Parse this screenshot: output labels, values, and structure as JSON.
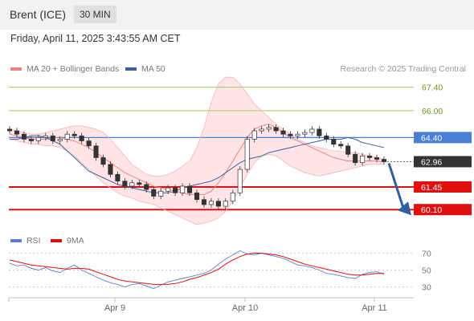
{
  "header": {
    "instrument": "Brent (ICE)",
    "timeframe": "30 MIN"
  },
  "datetime": "Friday, April 11, 2025 3:43:55 AM CET",
  "credit": "Research © 2025 Trading Central",
  "colors": {
    "bollinger": "#f08080",
    "ma50": "#3a5fa5",
    "resistance": "#8bc34a",
    "pivot": "#4a7fd6",
    "support": "#e01010",
    "last_price": "#333333",
    "arrow": "#2f5f9f",
    "candle_up": "#ffffff",
    "candle_down": "#333333",
    "rsi": "#5a7fd6",
    "rsi_ma": "#e01010"
  },
  "chart_data": [
    {
      "type": "line",
      "title": "",
      "legend": [
        {
          "name": "MA 20 + Bollinger Bands",
          "color": "#f08080"
        },
        {
          "name": "MA 50",
          "color": "#3a5fa5"
        }
      ],
      "x_ticks": [
        "Apr 9",
        "Apr 10",
        "Apr 11"
      ],
      "ylim": [
        59.2,
        68.2
      ],
      "levels": [
        {
          "label": "67.40",
          "value": 67.4,
          "kind": "resistance"
        },
        {
          "label": "66.00",
          "value": 66.0,
          "kind": "resistance"
        },
        {
          "label": "64.40",
          "value": 64.4,
          "kind": "pivot"
        },
        {
          "label": "62.96",
          "value": 62.96,
          "kind": "last"
        },
        {
          "label": "61.45",
          "value": 61.45,
          "kind": "support"
        },
        {
          "label": "60.10",
          "value": 60.1,
          "kind": "support"
        }
      ],
      "arrow": {
        "direction": "down",
        "from": 62.96,
        "to": 60.1
      },
      "series": [
        {
          "name": "MA 20",
          "values": [
            64.6,
            64.5,
            64.4,
            64.3,
            64.3,
            64.3,
            64.4,
            64.4,
            64.3,
            64.2,
            64.0,
            63.8,
            63.5,
            63.2,
            62.9,
            62.6,
            62.3,
            62.1,
            61.9,
            61.7,
            61.5,
            61.4,
            61.3,
            61.2,
            61.1,
            61.0,
            61.0,
            61.0,
            61.2,
            61.7,
            62.3,
            63.0,
            63.7,
            64.4,
            64.9,
            65.1,
            65.2,
            65.0,
            64.7,
            64.4,
            64.2,
            64.0,
            63.8,
            63.6,
            63.4,
            63.2,
            63.1,
            63.0,
            63.0,
            63.0,
            63.0,
            63.0,
            62.96
          ]
        },
        {
          "name": "MA 50",
          "values": [
            64.3,
            64.3,
            64.4,
            64.5,
            64.5,
            64.4,
            64.2,
            64.0,
            63.6,
            63.2,
            62.8,
            62.4,
            62.2,
            62.0,
            61.8,
            61.6,
            61.5,
            61.4,
            61.3,
            61.2,
            61.1,
            61.1,
            61.1,
            61.2,
            61.4,
            61.5,
            61.6,
            61.7,
            61.8,
            62.0,
            62.3,
            62.6,
            62.9,
            63.1,
            63.2,
            63.3,
            63.5,
            63.6,
            63.7,
            63.8,
            63.9,
            64.0,
            64.1,
            64.2,
            64.3,
            64.3,
            64.3,
            64.4,
            64.3,
            64.1,
            64.0,
            63.9,
            63.8
          ]
        },
        {
          "name": "Bollinger Upper",
          "values": [
            64.9,
            64.8,
            64.7,
            64.6,
            64.6,
            64.7,
            64.8,
            64.9,
            65.0,
            65.1,
            65.1,
            65.0,
            64.9,
            64.7,
            64.3,
            63.8,
            63.3,
            62.8,
            62.5,
            62.2,
            62.1,
            62.1,
            62.2,
            62.4,
            62.7,
            63.0,
            63.8,
            65.0,
            66.5,
            67.6,
            68.0,
            68.0,
            67.6,
            67.0,
            66.4,
            66.0,
            65.6,
            65.2,
            64.9,
            64.6,
            64.3,
            64.1,
            63.9,
            63.8,
            63.7,
            63.6,
            63.6,
            63.5,
            63.5,
            63.4,
            63.3,
            63.2,
            63.1
          ]
        },
        {
          "name": "Bollinger Lower",
          "values": [
            64.3,
            64.2,
            64.1,
            64.0,
            64.0,
            63.9,
            63.9,
            63.8,
            63.6,
            63.3,
            62.9,
            62.5,
            62.1,
            61.7,
            61.4,
            61.1,
            60.9,
            60.8,
            60.6,
            60.5,
            60.4,
            60.2,
            60.0,
            59.8,
            59.6,
            59.4,
            59.2,
            59.3,
            59.4,
            59.6,
            60.0,
            60.6,
            61.4,
            62.2,
            62.9,
            63.3,
            63.4,
            63.3,
            63.0,
            62.7,
            62.5,
            62.3,
            62.2,
            62.1,
            62.2,
            62.3,
            62.4,
            62.5,
            62.6,
            62.7,
            62.8,
            62.8,
            62.8
          ]
        },
        {
          "name": "Price",
          "values": [
            64.8,
            64.6,
            64.3,
            64.2,
            64.4,
            64.5,
            64.2,
            64.3,
            64.6,
            64.5,
            64.2,
            63.9,
            63.2,
            62.8,
            62.2,
            61.8,
            61.5,
            61.7,
            61.6,
            61.3,
            60.9,
            61.2,
            61.4,
            61.1,
            61.5,
            61.1,
            60.7,
            60.4,
            60.6,
            60.3,
            60.6,
            61.1,
            62.5,
            64.3,
            64.8,
            64.9,
            65.0,
            64.8,
            64.6,
            64.5,
            64.6,
            64.7,
            64.9,
            64.5,
            64.3,
            64.0,
            63.9,
            63.4,
            62.9,
            63.3,
            63.2,
            63.1,
            62.96
          ]
        }
      ]
    },
    {
      "type": "line",
      "title": "",
      "legend": [
        {
          "name": "RSI",
          "color": "#5a7fd6"
        },
        {
          "name": "9MA",
          "color": "#e01010"
        }
      ],
      "y_ticks": [
        70,
        50,
        30
      ],
      "ylim": [
        20,
        80
      ],
      "series": [
        {
          "name": "RSI",
          "values": [
            58,
            55,
            56,
            52,
            50,
            53,
            49,
            47,
            52,
            56,
            50,
            46,
            42,
            38,
            35,
            33,
            30,
            33,
            34,
            31,
            28,
            32,
            36,
            38,
            40,
            42,
            44,
            46,
            50,
            57,
            63,
            68,
            73,
            69,
            68,
            70,
            68,
            66,
            64,
            60,
            56,
            55,
            53,
            50,
            46,
            45,
            43,
            41,
            40,
            45,
            47,
            48,
            45
          ]
        },
        {
          "name": "9MA",
          "values": [
            62,
            60,
            58,
            56,
            55,
            54,
            53,
            52,
            51,
            52,
            52,
            51,
            48,
            45,
            42,
            39,
            37,
            36,
            35,
            34,
            33,
            33,
            33,
            34,
            36,
            39,
            41,
            44,
            47,
            51,
            57,
            62,
            66,
            69,
            70,
            70,
            69,
            68,
            66,
            63,
            60,
            57,
            55,
            53,
            51,
            49,
            47,
            45,
            44,
            44,
            45,
            46,
            46
          ]
        }
      ]
    }
  ]
}
